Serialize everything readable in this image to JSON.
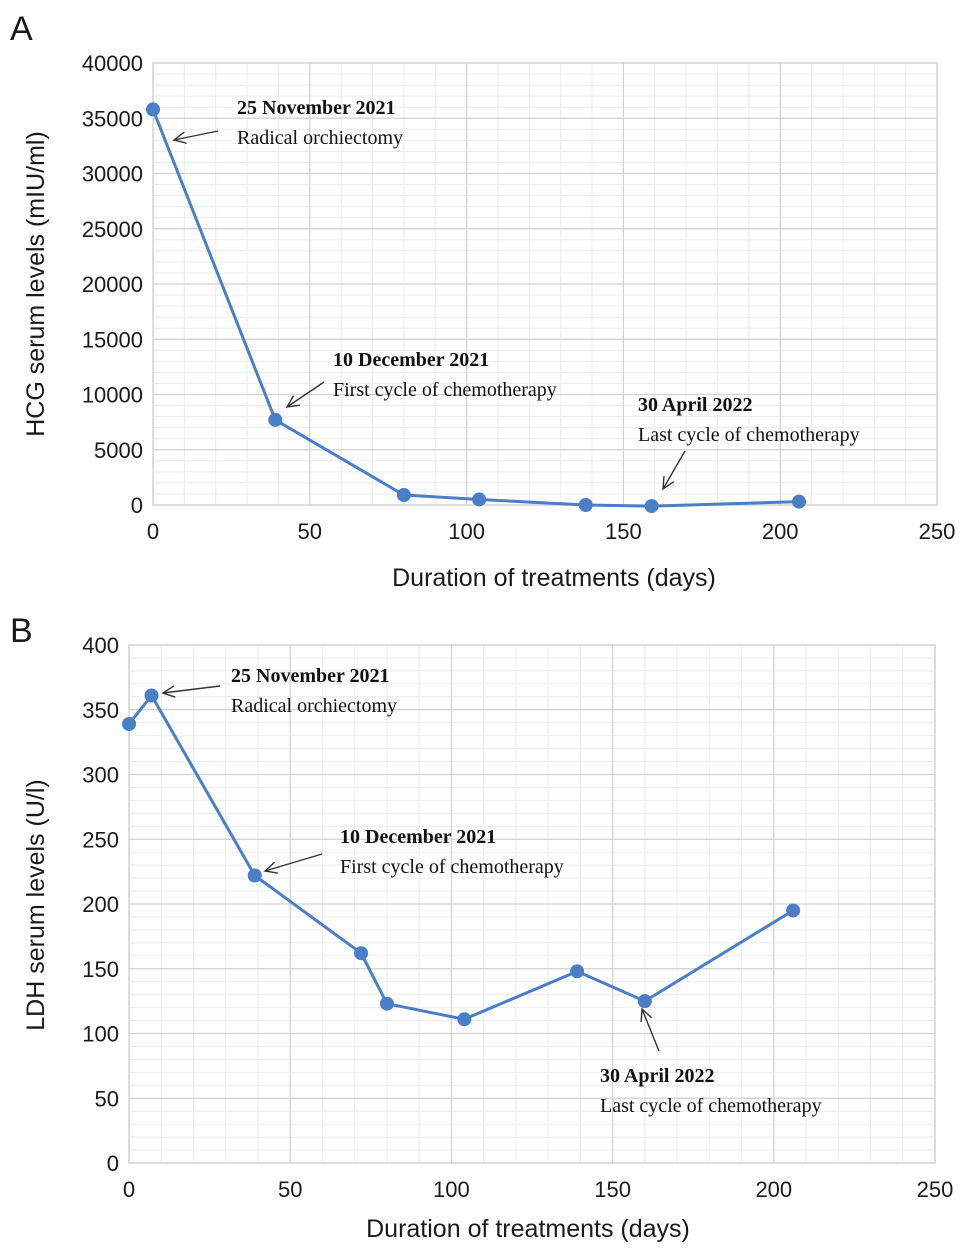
{
  "chart_data": [
    {
      "type": "line",
      "panel_label": "A",
      "xlabel": "Duration of treatments (days)",
      "ylabel": "HCG serum levels (mIU/ml)",
      "xlim": [
        0,
        250
      ],
      "ylim": [
        0,
        40000
      ],
      "x_ticks": [
        0,
        50,
        100,
        150,
        200,
        250
      ],
      "y_ticks": [
        0,
        5000,
        10000,
        15000,
        20000,
        25000,
        30000,
        35000,
        40000
      ],
      "grid": true,
      "series": [
        {
          "x": [
            0,
            39,
            80,
            104,
            138,
            159,
            206
          ],
          "y": [
            35800,
            7700,
            900,
            500,
            0,
            -100,
            300
          ]
        }
      ],
      "color": "#4a7ec6",
      "annotations": [
        {
          "date": "25 November 2021",
          "text": "Radical orchiectomy",
          "point": [
            0,
            35800
          ]
        },
        {
          "date": "10 December 2021",
          "text": "First cycle of chemotherapy",
          "point": [
            39,
            7700
          ]
        },
        {
          "date": "30 April 2022",
          "text": "Last cycle of chemotherapy",
          "point": [
            159,
            -100
          ]
        }
      ]
    },
    {
      "type": "line",
      "panel_label": "B",
      "xlabel": "Duration of treatments (days)",
      "ylabel": "LDH serum levels (U/l)",
      "xlim": [
        0,
        250
      ],
      "ylim": [
        0,
        400
      ],
      "x_ticks": [
        0,
        50,
        100,
        150,
        200,
        250
      ],
      "y_ticks": [
        0,
        50,
        100,
        150,
        200,
        250,
        300,
        350,
        400
      ],
      "grid": true,
      "series": [
        {
          "x": [
            0,
            7,
            39,
            72,
            80,
            104,
            139,
            160,
            206
          ],
          "y": [
            339,
            361,
            222,
            162,
            123,
            111,
            148,
            125,
            195
          ]
        }
      ],
      "color": "#4a7ec6",
      "annotations": [
        {
          "date": "25 November 2021",
          "text": "Radical orchiectomy",
          "point": [
            7,
            361
          ]
        },
        {
          "date": "10 December 2021",
          "text": "First cycle of chemotherapy",
          "point": [
            39,
            222
          ]
        },
        {
          "date": "30 April 2022",
          "text": "Last cycle of chemotherapy",
          "point": [
            160,
            125
          ]
        }
      ]
    }
  ]
}
